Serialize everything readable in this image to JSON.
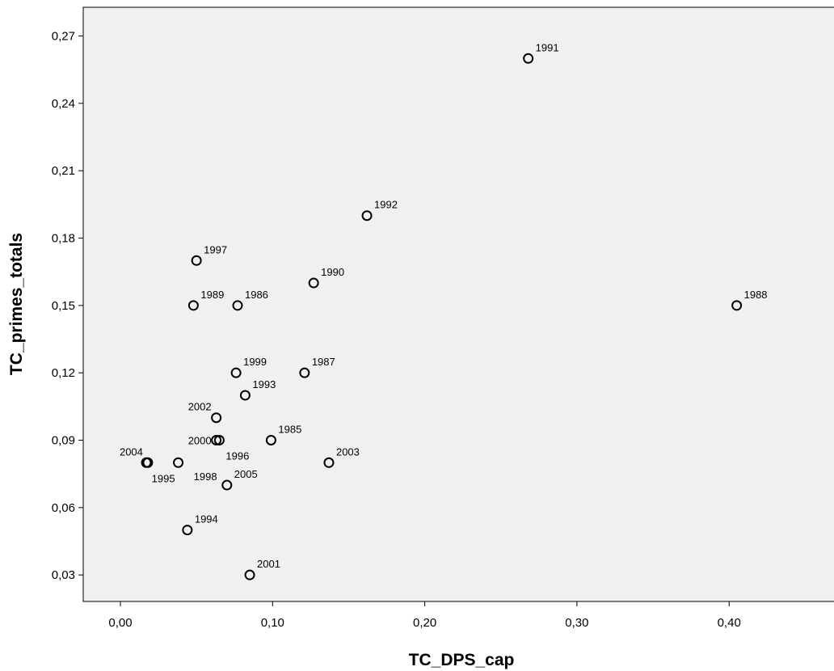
{
  "chart_data": {
    "type": "scatter",
    "title": "",
    "xlabel": "TC_DPS_cap",
    "ylabel": "TC_primes_totals",
    "xlim": [
      -0.025,
      0.46
    ],
    "ylim": [
      0.017,
      0.282
    ],
    "x_ticks": [
      0.0,
      0.1,
      0.2,
      0.3,
      0.4
    ],
    "x_tick_labels": [
      "0,00",
      "0,10",
      "0,20",
      "0,30",
      "0,40"
    ],
    "y_ticks": [
      0.03,
      0.06,
      0.09,
      0.12,
      0.15,
      0.18,
      0.21,
      0.24,
      0.27
    ],
    "y_tick_labels": [
      "0,03",
      "0,06",
      "0,09",
      "0,12",
      "0,15",
      "0,18",
      "0,21",
      "0,24",
      "0,27"
    ],
    "grid": false,
    "plot_background": "#f0f0f0",
    "marker_color": "#000000",
    "points": [
      {
        "label": "1985",
        "x": 0.099,
        "y": 0.09,
        "label_pos": "ur"
      },
      {
        "label": "1986",
        "x": 0.077,
        "y": 0.15,
        "label_pos": "ur"
      },
      {
        "label": "1987",
        "x": 0.121,
        "y": 0.12,
        "label_pos": "ur"
      },
      {
        "label": "1988",
        "x": 0.405,
        "y": 0.15,
        "label_pos": "ur"
      },
      {
        "label": "1989",
        "x": 0.048,
        "y": 0.15,
        "label_pos": "ur"
      },
      {
        "label": "1990",
        "x": 0.127,
        "y": 0.16,
        "label_pos": "ur"
      },
      {
        "label": "1991",
        "x": 0.268,
        "y": 0.26,
        "label_pos": "ur"
      },
      {
        "label": "1992",
        "x": 0.162,
        "y": 0.19,
        "label_pos": "ur"
      },
      {
        "label": "1993",
        "x": 0.082,
        "y": 0.11,
        "label_pos": "ur"
      },
      {
        "label": "1994",
        "x": 0.044,
        "y": 0.05,
        "label_pos": "ur"
      },
      {
        "label": "1995",
        "x": 0.038,
        "y": 0.08,
        "label_pos": "bl"
      },
      {
        "label": "1996",
        "x": 0.065,
        "y": 0.09,
        "label_pos": "br"
      },
      {
        "label": "1997",
        "x": 0.05,
        "y": 0.17,
        "label_pos": "ur"
      },
      {
        "label": "1998",
        "x": 0.017,
        "y": 0.08,
        "label_pos": "none"
      },
      {
        "label": "1999",
        "x": 0.076,
        "y": 0.12,
        "label_pos": "ur"
      },
      {
        "label": "2000",
        "x": 0.063,
        "y": 0.09,
        "label_pos": "l"
      },
      {
        "label": "2001",
        "x": 0.085,
        "y": 0.03,
        "label_pos": "ur"
      },
      {
        "label": "2002",
        "x": 0.063,
        "y": 0.1,
        "label_pos": "ul"
      },
      {
        "label": "2003",
        "x": 0.137,
        "y": 0.08,
        "label_pos": "ur"
      },
      {
        "label": "2004",
        "x": 0.018,
        "y": 0.08,
        "label_pos": "ul"
      },
      {
        "label": "2005",
        "x": 0.07,
        "y": 0.07,
        "label_pos": "ur"
      }
    ],
    "free_labels": [
      {
        "text": "1998",
        "x": 0.0635,
        "y": 0.074,
        "anchor": "end"
      }
    ]
  }
}
